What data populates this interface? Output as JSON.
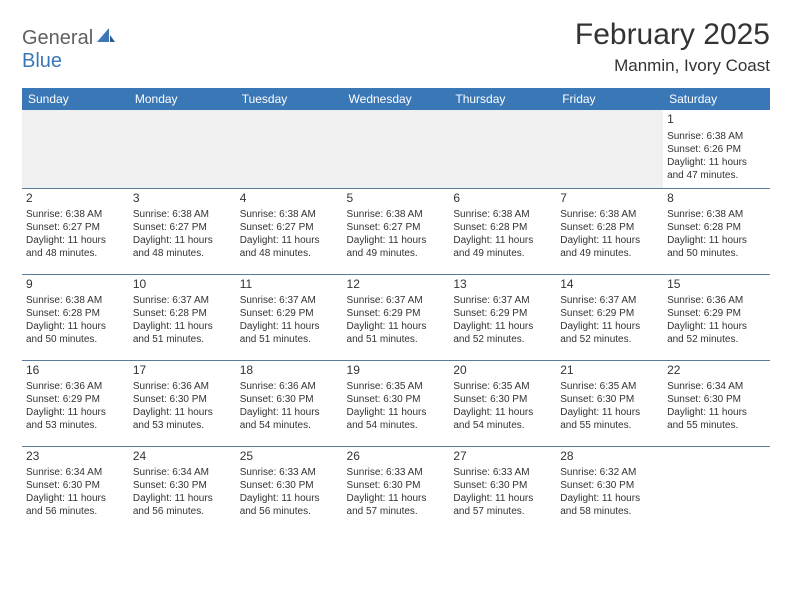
{
  "logo": {
    "top": "General",
    "bottom": "Blue"
  },
  "title": "February 2025",
  "location": "Manmin, Ivory Coast",
  "colors": {
    "header_bg": "#3a77b7",
    "header_text": "#ffffff",
    "border": "#5a7a9a",
    "logo_gray": "#606060",
    "logo_blue": "#3a77b7",
    "blank_bg": "#f0f0f0"
  },
  "weekdays": [
    "Sunday",
    "Monday",
    "Tuesday",
    "Wednesday",
    "Thursday",
    "Friday",
    "Saturday"
  ],
  "weeks": [
    [
      null,
      null,
      null,
      null,
      null,
      null,
      {
        "d": "1",
        "sr": "6:38 AM",
        "ss": "6:26 PM",
        "dl": "11 hours and 47 minutes."
      }
    ],
    [
      {
        "d": "2",
        "sr": "6:38 AM",
        "ss": "6:27 PM",
        "dl": "11 hours and 48 minutes."
      },
      {
        "d": "3",
        "sr": "6:38 AM",
        "ss": "6:27 PM",
        "dl": "11 hours and 48 minutes."
      },
      {
        "d": "4",
        "sr": "6:38 AM",
        "ss": "6:27 PM",
        "dl": "11 hours and 48 minutes."
      },
      {
        "d": "5",
        "sr": "6:38 AM",
        "ss": "6:27 PM",
        "dl": "11 hours and 49 minutes."
      },
      {
        "d": "6",
        "sr": "6:38 AM",
        "ss": "6:28 PM",
        "dl": "11 hours and 49 minutes."
      },
      {
        "d": "7",
        "sr": "6:38 AM",
        "ss": "6:28 PM",
        "dl": "11 hours and 49 minutes."
      },
      {
        "d": "8",
        "sr": "6:38 AM",
        "ss": "6:28 PM",
        "dl": "11 hours and 50 minutes."
      }
    ],
    [
      {
        "d": "9",
        "sr": "6:38 AM",
        "ss": "6:28 PM",
        "dl": "11 hours and 50 minutes."
      },
      {
        "d": "10",
        "sr": "6:37 AM",
        "ss": "6:28 PM",
        "dl": "11 hours and 51 minutes."
      },
      {
        "d": "11",
        "sr": "6:37 AM",
        "ss": "6:29 PM",
        "dl": "11 hours and 51 minutes."
      },
      {
        "d": "12",
        "sr": "6:37 AM",
        "ss": "6:29 PM",
        "dl": "11 hours and 51 minutes."
      },
      {
        "d": "13",
        "sr": "6:37 AM",
        "ss": "6:29 PM",
        "dl": "11 hours and 52 minutes."
      },
      {
        "d": "14",
        "sr": "6:37 AM",
        "ss": "6:29 PM",
        "dl": "11 hours and 52 minutes."
      },
      {
        "d": "15",
        "sr": "6:36 AM",
        "ss": "6:29 PM",
        "dl": "11 hours and 52 minutes."
      }
    ],
    [
      {
        "d": "16",
        "sr": "6:36 AM",
        "ss": "6:29 PM",
        "dl": "11 hours and 53 minutes."
      },
      {
        "d": "17",
        "sr": "6:36 AM",
        "ss": "6:30 PM",
        "dl": "11 hours and 53 minutes."
      },
      {
        "d": "18",
        "sr": "6:36 AM",
        "ss": "6:30 PM",
        "dl": "11 hours and 54 minutes."
      },
      {
        "d": "19",
        "sr": "6:35 AM",
        "ss": "6:30 PM",
        "dl": "11 hours and 54 minutes."
      },
      {
        "d": "20",
        "sr": "6:35 AM",
        "ss": "6:30 PM",
        "dl": "11 hours and 54 minutes."
      },
      {
        "d": "21",
        "sr": "6:35 AM",
        "ss": "6:30 PM",
        "dl": "11 hours and 55 minutes."
      },
      {
        "d": "22",
        "sr": "6:34 AM",
        "ss": "6:30 PM",
        "dl": "11 hours and 55 minutes."
      }
    ],
    [
      {
        "d": "23",
        "sr": "6:34 AM",
        "ss": "6:30 PM",
        "dl": "11 hours and 56 minutes."
      },
      {
        "d": "24",
        "sr": "6:34 AM",
        "ss": "6:30 PM",
        "dl": "11 hours and 56 minutes."
      },
      {
        "d": "25",
        "sr": "6:33 AM",
        "ss": "6:30 PM",
        "dl": "11 hours and 56 minutes."
      },
      {
        "d": "26",
        "sr": "6:33 AM",
        "ss": "6:30 PM",
        "dl": "11 hours and 57 minutes."
      },
      {
        "d": "27",
        "sr": "6:33 AM",
        "ss": "6:30 PM",
        "dl": "11 hours and 57 minutes."
      },
      {
        "d": "28",
        "sr": "6:32 AM",
        "ss": "6:30 PM",
        "dl": "11 hours and 58 minutes."
      },
      null
    ]
  ],
  "labels": {
    "sunrise": "Sunrise: ",
    "sunset": "Sunset: ",
    "daylight": "Daylight: "
  }
}
